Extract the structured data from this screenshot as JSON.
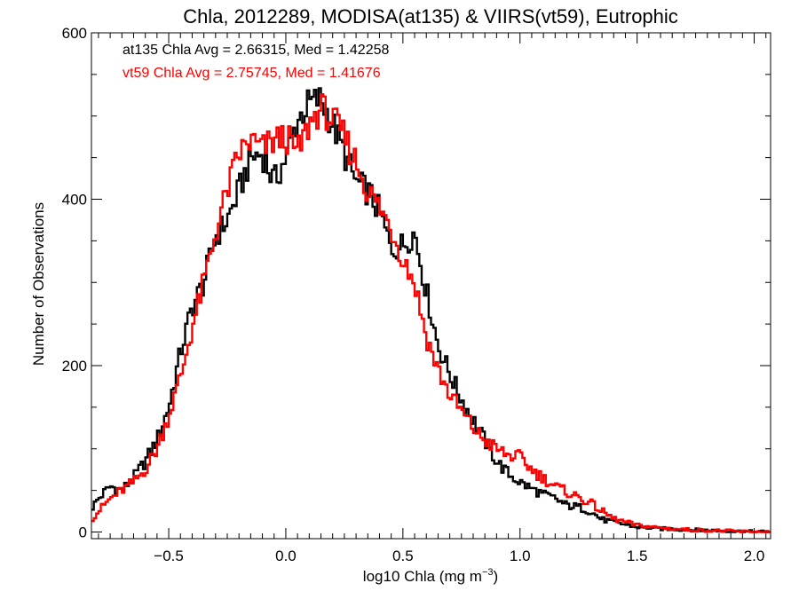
{
  "chart_data": {
    "type": "histogram",
    "title": "Chla, 2012289, MODISA(at135) & VIIRS(vt59), Eutrophic",
    "xlabel_main": "log10 Chla (mg m",
    "xlabel_sup": "−3",
    "xlabel_close": ")",
    "ylabel": "Number of Observations",
    "xlim": [
      -0.83,
      2.07
    ],
    "ylim": [
      -8,
      600
    ],
    "x_ticks": [
      -0.5,
      0.0,
      0.5,
      1.0,
      1.5,
      2.0
    ],
    "x_tick_labels": [
      "−0.5",
      "0.0",
      "0.5",
      "1.0",
      "1.5",
      "2.0"
    ],
    "y_ticks": [
      0,
      200,
      400,
      600
    ],
    "y_tick_labels": [
      "0",
      "200",
      "400",
      "600"
    ],
    "grid": false,
    "annotations": [
      {
        "text": "at135 Chla Avg = 2.66315, Med = 1.42258",
        "color": "#000000"
      },
      {
        "text": "vt59 Chla Avg = 2.75745, Med = 1.41676",
        "color": "#ff0000"
      }
    ],
    "series": [
      {
        "color": "#000000",
        "bin_width": 0.01,
        "knots": [
          [
            -0.83,
            28
          ],
          [
            -0.8,
            40
          ],
          [
            -0.75,
            55
          ],
          [
            -0.7,
            50
          ],
          [
            -0.65,
            65
          ],
          [
            -0.6,
            85
          ],
          [
            -0.55,
            110
          ],
          [
            -0.5,
            150
          ],
          [
            -0.45,
            215
          ],
          [
            -0.4,
            270
          ],
          [
            -0.35,
            300
          ],
          [
            -0.3,
            355
          ],
          [
            -0.25,
            375
          ],
          [
            -0.2,
            410
          ],
          [
            -0.15,
            450
          ],
          [
            -0.1,
            455
          ],
          [
            -0.05,
            420
          ],
          [
            0.0,
            450
          ],
          [
            0.05,
            495
          ],
          [
            0.1,
            515
          ],
          [
            0.15,
            520
          ],
          [
            0.2,
            490
          ],
          [
            0.25,
            455
          ],
          [
            0.3,
            420
          ],
          [
            0.35,
            410
          ],
          [
            0.4,
            385
          ],
          [
            0.45,
            340
          ],
          [
            0.5,
            345
          ],
          [
            0.55,
            360
          ],
          [
            0.6,
            290
          ],
          [
            0.65,
            225
          ],
          [
            0.7,
            190
          ],
          [
            0.75,
            160
          ],
          [
            0.8,
            135
          ],
          [
            0.85,
            110
          ],
          [
            0.9,
            85
          ],
          [
            0.95,
            70
          ],
          [
            1.0,
            60
          ],
          [
            1.05,
            52
          ],
          [
            1.1,
            45
          ],
          [
            1.15,
            40
          ],
          [
            1.2,
            32
          ],
          [
            1.25,
            30
          ],
          [
            1.3,
            25
          ],
          [
            1.35,
            15
          ],
          [
            1.4,
            12
          ],
          [
            1.5,
            6
          ],
          [
            1.6,
            4
          ],
          [
            1.7,
            3
          ],
          [
            1.8,
            2
          ],
          [
            1.9,
            1
          ],
          [
            2.0,
            0
          ],
          [
            2.07,
            0
          ]
        ]
      },
      {
        "color": "#ff0000",
        "bin_width": 0.01,
        "knots": [
          [
            -0.83,
            15
          ],
          [
            -0.8,
            25
          ],
          [
            -0.75,
            40
          ],
          [
            -0.7,
            50
          ],
          [
            -0.65,
            60
          ],
          [
            -0.6,
            75
          ],
          [
            -0.55,
            100
          ],
          [
            -0.5,
            140
          ],
          [
            -0.45,
            185
          ],
          [
            -0.4,
            245
          ],
          [
            -0.35,
            300
          ],
          [
            -0.3,
            360
          ],
          [
            -0.25,
            410
          ],
          [
            -0.2,
            455
          ],
          [
            -0.15,
            470
          ],
          [
            -0.1,
            460
          ],
          [
            -0.05,
            470
          ],
          [
            0.0,
            475
          ],
          [
            0.05,
            455
          ],
          [
            0.1,
            490
          ],
          [
            0.15,
            510
          ],
          [
            0.2,
            495
          ],
          [
            0.25,
            475
          ],
          [
            0.3,
            445
          ],
          [
            0.35,
            410
          ],
          [
            0.4,
            390
          ],
          [
            0.45,
            365
          ],
          [
            0.5,
            330
          ],
          [
            0.55,
            300
          ],
          [
            0.6,
            235
          ],
          [
            0.65,
            195
          ],
          [
            0.7,
            165
          ],
          [
            0.75,
            145
          ],
          [
            0.8,
            125
          ],
          [
            0.85,
            110
          ],
          [
            0.9,
            100
          ],
          [
            0.95,
            92
          ],
          [
            1.0,
            90
          ],
          [
            1.05,
            75
          ],
          [
            1.1,
            65
          ],
          [
            1.15,
            55
          ],
          [
            1.2,
            48
          ],
          [
            1.25,
            42
          ],
          [
            1.3,
            35
          ],
          [
            1.35,
            25
          ],
          [
            1.4,
            16
          ],
          [
            1.5,
            8
          ],
          [
            1.6,
            5
          ],
          [
            1.7,
            3
          ],
          [
            1.8,
            2
          ],
          [
            1.9,
            1
          ],
          [
            2.0,
            0
          ],
          [
            2.07,
            0
          ]
        ]
      }
    ]
  }
}
